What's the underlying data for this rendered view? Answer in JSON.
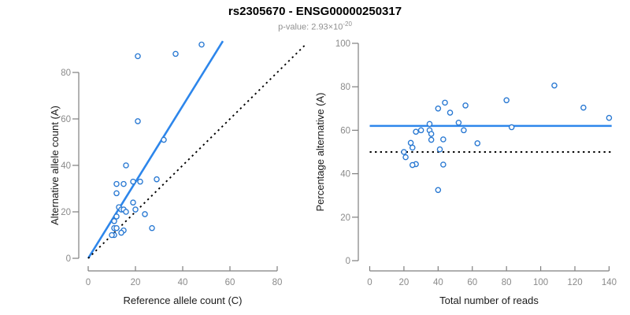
{
  "header": {
    "title": "rs2305670 - ENSG00000250317",
    "pvalue_label": "p-value: 2.93×10",
    "pvalue_exponent": "-20"
  },
  "colors": {
    "accent_blue": "#2D86EB",
    "point_blue": "#2878D2",
    "dotted_black": "#000000",
    "axis_gray": "#7f7f7f",
    "tick_label_gray": "#8a8a8a"
  },
  "chart_data": [
    {
      "type": "scatter",
      "title": "",
      "xlabel": "Reference allele count (C)",
      "ylabel": "Alternative allele count (A)",
      "xlim": [
        0,
        80
      ],
      "ylim": [
        0,
        80
      ],
      "grid": false,
      "legend": "none",
      "point_style": "open-circle",
      "xticks": [
        0,
        20,
        40,
        60,
        80
      ],
      "yticks": [
        0,
        20,
        40,
        60,
        80
      ],
      "points": [
        [
          48,
          92
        ],
        [
          37,
          88
        ],
        [
          21,
          87
        ],
        [
          21,
          59
        ],
        [
          32,
          51
        ],
        [
          16,
          40
        ],
        [
          29,
          34
        ],
        [
          22,
          33
        ],
        [
          19,
          33
        ],
        [
          15,
          32
        ],
        [
          12,
          32
        ],
        [
          12,
          28
        ],
        [
          19,
          24
        ],
        [
          13,
          22
        ],
        [
          14,
          21
        ],
        [
          15,
          21
        ],
        [
          20,
          21
        ],
        [
          16,
          20
        ],
        [
          24,
          19
        ],
        [
          12,
          18
        ],
        [
          11,
          16
        ],
        [
          11,
          13
        ],
        [
          12,
          13
        ],
        [
          27,
          13
        ],
        [
          15,
          12
        ],
        [
          14,
          11
        ],
        [
          11,
          10
        ],
        [
          10,
          10
        ]
      ],
      "lines": [
        {
          "name": "regression-fit",
          "style": "solid",
          "color": "#2D86EB",
          "from": [
            0,
            0
          ],
          "to": [
            57,
            93.5
          ]
        },
        {
          "name": "identity-y-equals-x",
          "style": "dotted",
          "color": "#000000",
          "from": [
            0,
            0
          ],
          "to": [
            92.5,
            92.5
          ]
        }
      ]
    },
    {
      "type": "scatter",
      "title": "",
      "xlabel": "Total number of reads",
      "ylabel": "Percentage alternative (A)",
      "xlim": [
        0,
        140
      ],
      "ylim": [
        0,
        100
      ],
      "grid": false,
      "legend": "none",
      "point_style": "open-circle",
      "xticks": [
        0,
        20,
        40,
        60,
        80,
        100,
        120,
        140
      ],
      "yticks": [
        0,
        20,
        40,
        60,
        80,
        100
      ],
      "points": [
        [
          140,
          65.7
        ],
        [
          125,
          70.4
        ],
        [
          108,
          80.6
        ],
        [
          80,
          73.8
        ],
        [
          83,
          61.4
        ],
        [
          56,
          71.4
        ],
        [
          63,
          54.0
        ],
        [
          55,
          60.0
        ],
        [
          52,
          63.5
        ],
        [
          47,
          68.1
        ],
        [
          44,
          72.7
        ],
        [
          40,
          70.0
        ],
        [
          43,
          55.8
        ],
        [
          35,
          62.9
        ],
        [
          35,
          60.0
        ],
        [
          36,
          58.3
        ],
        [
          41,
          51.2
        ],
        [
          36,
          55.6
        ],
        [
          43,
          44.2
        ],
        [
          30,
          60.0
        ],
        [
          27,
          59.3
        ],
        [
          24,
          54.2
        ],
        [
          25,
          52.0
        ],
        [
          40,
          32.5
        ],
        [
          27,
          44.4
        ],
        [
          25,
          44.0
        ],
        [
          21,
          47.6
        ],
        [
          20,
          50.0
        ]
      ],
      "lines": [
        {
          "name": "mean-percentage",
          "style": "solid",
          "color": "#2D86EB",
          "from": [
            0,
            62
          ],
          "to": [
            141.5,
            62
          ]
        },
        {
          "name": "fifty-percent-reference",
          "style": "dotted",
          "color": "#000000",
          "from": [
            0,
            50
          ],
          "to": [
            141.5,
            50
          ]
        }
      ]
    }
  ]
}
